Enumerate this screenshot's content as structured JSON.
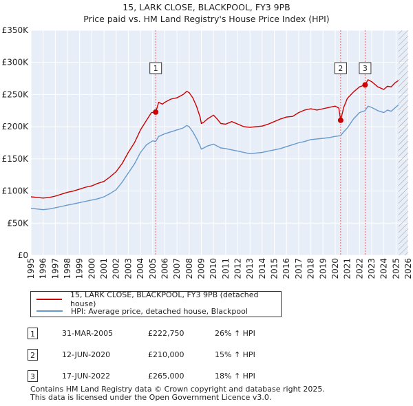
{
  "chart_data": {
    "type": "line",
    "title": "15, LARK CLOSE, BLACKPOOL, FY3 9PB",
    "subtitle": "Price paid vs. HM Land Registry's House Price Index (HPI)",
    "xlabel": "",
    "ylabel": "",
    "xlim": [
      1995,
      2026
    ],
    "ylim": [
      0,
      350000
    ],
    "x_ticks": [
      "1995",
      "1996",
      "1997",
      "1998",
      "1999",
      "2000",
      "2001",
      "2002",
      "2003",
      "2004",
      "2005",
      "2006",
      "2007",
      "2008",
      "2009",
      "2010",
      "2011",
      "2012",
      "2013",
      "2014",
      "2015",
      "2016",
      "2017",
      "2018",
      "2019",
      "2020",
      "2021",
      "2022",
      "2023",
      "2024",
      "2025",
      "2026"
    ],
    "y_ticks": [
      {
        "value": 0,
        "label": "£0"
      },
      {
        "value": 50000,
        "label": "£50K"
      },
      {
        "value": 100000,
        "label": "£100K"
      },
      {
        "value": 150000,
        "label": "£150K"
      },
      {
        "value": 200000,
        "label": "£200K"
      },
      {
        "value": 250000,
        "label": "£250K"
      },
      {
        "value": 300000,
        "label": "£300K"
      },
      {
        "value": 350000,
        "label": "£350K"
      }
    ],
    "grid": true,
    "series": [
      {
        "name": "15, LARK CLOSE, BLACKPOOL, FY3 9PB (detached house)",
        "color": "#cc0000",
        "x": [
          1995.0,
          1995.5,
          1996.0,
          1996.5,
          1997.0,
          1997.5,
          1998.0,
          1998.5,
          1999.0,
          1999.5,
          2000.0,
          2000.5,
          2001.0,
          2001.5,
          2002.0,
          2002.5,
          2003.0,
          2003.5,
          2004.0,
          2004.5,
          2004.9,
          2005.25,
          2005.5,
          2005.8,
          2006.0,
          2006.5,
          2007.0,
          2007.5,
          2007.8,
          2008.0,
          2008.3,
          2008.6,
          2008.9,
          2009.0,
          2009.2,
          2009.5,
          2010.0,
          2010.3,
          2010.6,
          2011.0,
          2011.5,
          2012.0,
          2012.5,
          2013.0,
          2013.5,
          2014.0,
          2014.5,
          2015.0,
          2015.5,
          2016.0,
          2016.5,
          2017.0,
          2017.5,
          2018.0,
          2018.5,
          2019.0,
          2019.5,
          2020.0,
          2020.3,
          2020.45,
          2020.7,
          2021.0,
          2021.5,
          2022.0,
          2022.46,
          2022.7,
          2023.0,
          2023.5,
          2024.0,
          2024.3,
          2024.6,
          2024.9,
          2025.2
        ],
        "values": [
          91000,
          90000,
          89000,
          90000,
          92000,
          95000,
          98000,
          100000,
          103000,
          106000,
          108000,
          112000,
          115000,
          122000,
          130000,
          143000,
          160000,
          175000,
          195000,
          210000,
          222000,
          222750,
          238000,
          235000,
          238000,
          243000,
          245000,
          250000,
          255000,
          253000,
          245000,
          232000,
          215000,
          205000,
          207000,
          212000,
          218000,
          212000,
          205000,
          204000,
          208000,
          204000,
          200000,
          199000,
          200000,
          201000,
          204000,
          208000,
          212000,
          215000,
          216000,
          222000,
          226000,
          228000,
          226000,
          228000,
          230000,
          232000,
          229000,
          210000,
          230000,
          244000,
          254000,
          262000,
          265000,
          273000,
          270000,
          262000,
          258000,
          263000,
          262000,
          268000,
          272000
        ]
      },
      {
        "name": "HPI: Average price, detached house, Blackpool",
        "color": "#6699cc",
        "x": [
          1995.0,
          1995.5,
          1996.0,
          1996.5,
          1997.0,
          1997.5,
          1998.0,
          1998.5,
          1999.0,
          1999.5,
          2000.0,
          2000.5,
          2001.0,
          2001.5,
          2002.0,
          2002.5,
          2003.0,
          2003.5,
          2004.0,
          2004.5,
          2005.0,
          2005.25,
          2005.5,
          2006.0,
          2006.5,
          2007.0,
          2007.5,
          2007.8,
          2008.0,
          2008.3,
          2008.6,
          2008.9,
          2009.0,
          2009.2,
          2009.5,
          2010.0,
          2010.3,
          2010.6,
          2011.0,
          2011.5,
          2012.0,
          2012.5,
          2013.0,
          2013.5,
          2014.0,
          2014.5,
          2015.0,
          2015.5,
          2016.0,
          2016.5,
          2017.0,
          2017.5,
          2018.0,
          2018.5,
          2019.0,
          2019.5,
          2020.0,
          2020.45,
          2020.7,
          2021.0,
          2021.5,
          2022.0,
          2022.46,
          2022.7,
          2023.0,
          2023.5,
          2024.0,
          2024.3,
          2024.6,
          2024.9,
          2025.2
        ],
        "values": [
          73000,
          72000,
          71000,
          72000,
          74000,
          76000,
          78000,
          80000,
          82000,
          84000,
          86000,
          88000,
          91000,
          96000,
          102000,
          114000,
          128000,
          142000,
          160000,
          172000,
          178000,
          177000,
          185000,
          189000,
          192000,
          195000,
          198000,
          202000,
          200000,
          192000,
          182000,
          170000,
          165000,
          167000,
          170000,
          173000,
          170000,
          167000,
          166000,
          164000,
          162000,
          160000,
          158000,
          159000,
          160000,
          162000,
          164000,
          166000,
          169000,
          172000,
          175000,
          177000,
          180000,
          181000,
          182000,
          183000,
          185000,
          186000,
          192000,
          198000,
          212000,
          222000,
          225000,
          232000,
          230000,
          225000,
          222000,
          226000,
          224000,
          229000,
          234000
        ]
      }
    ],
    "markers": [
      {
        "label": "1",
        "x": 2005.25,
        "y": 222750
      },
      {
        "label": "2",
        "x": 2020.45,
        "y": 210000
      },
      {
        "label": "3",
        "x": 2022.46,
        "y": 265000
      }
    ],
    "hatch_start": 2025.2
  },
  "legend": {
    "property_label": "15, LARK CLOSE, BLACKPOOL, FY3 9PB (detached house)",
    "hpi_label": "HPI: Average price, detached house, Blackpool"
  },
  "transactions": [
    {
      "num": "1",
      "date": "31-MAR-2005",
      "price": "£222,750",
      "hpi": "26% ↑ HPI"
    },
    {
      "num": "2",
      "date": "12-JUN-2020",
      "price": "£210,000",
      "hpi": "15% ↑ HPI"
    },
    {
      "num": "3",
      "date": "17-JUN-2022",
      "price": "£265,000",
      "hpi": "18% ↑ HPI"
    }
  ],
  "footer": {
    "line1": "Contains HM Land Registry data © Crown copyright and database right 2025.",
    "line2": "This data is licensed under the Open Government Licence v3.0."
  }
}
